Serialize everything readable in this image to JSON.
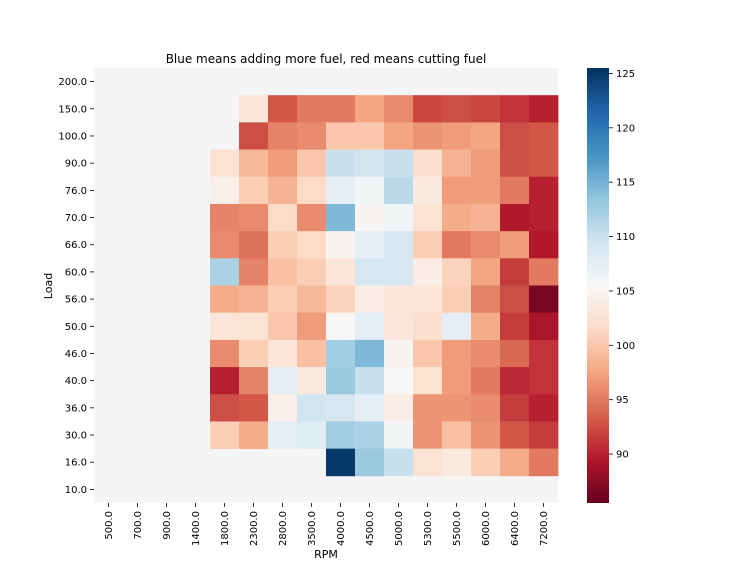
{
  "chart_data": {
    "type": "heatmap",
    "title": "Blue means adding more fuel, red means cutting fuel",
    "xlabel": "RPM",
    "ylabel": "Load",
    "x_categories": [
      "500.0",
      "700.0",
      "900.0",
      "1400.0",
      "1800.0",
      "2300.0",
      "2800.0",
      "3500.0",
      "4000.0",
      "4500.0",
      "5000.0",
      "5300.0",
      "5500.0",
      "6000.0",
      "6400.0",
      "7200.0"
    ],
    "y_categories": [
      "200.0",
      "150.0",
      "100.0",
      "90.0",
      "76.0",
      "70.0",
      "66.0",
      "60.0",
      "56.0",
      "50.0",
      "46.0",
      "40.0",
      "36.0",
      "30.0",
      "16.0",
      "10.0"
    ],
    "values": [
      [
        null,
        null,
        null,
        null,
        null,
        null,
        null,
        null,
        null,
        null,
        null,
        null,
        null,
        null,
        null,
        null
      ],
      [
        null,
        null,
        null,
        null,
        null,
        103,
        93,
        95,
        95,
        97.5,
        96,
        92,
        92.5,
        92,
        91,
        90
      ],
      [
        null,
        null,
        null,
        null,
        null,
        92.5,
        95.5,
        96,
        100,
        100,
        97.5,
        96.5,
        97,
        97.5,
        92.5,
        93
      ],
      [
        null,
        null,
        null,
        null,
        102.5,
        99,
        97,
        100,
        110,
        109.5,
        110,
        102,
        98.5,
        97,
        92.5,
        93
      ],
      [
        null,
        null,
        null,
        null,
        104.5,
        100.5,
        98.5,
        101.5,
        107.5,
        106,
        111,
        103.5,
        97,
        97,
        95,
        90
      ],
      [
        null,
        null,
        null,
        null,
        95.5,
        96,
        101.5,
        96,
        114.5,
        105,
        106,
        102.5,
        98,
        98.5,
        89.5,
        90
      ],
      [
        null,
        null,
        null,
        null,
        96,
        94.5,
        100.5,
        101.5,
        105,
        107.5,
        109,
        100.5,
        95,
        96,
        97,
        89.5
      ],
      [
        null,
        null,
        null,
        null,
        112,
        95.5,
        99.5,
        100.5,
        103,
        109,
        109,
        104,
        101,
        97.5,
        91.5,
        95
      ],
      [
        null,
        null,
        null,
        null,
        98,
        98.5,
        100.5,
        99,
        101,
        104,
        103,
        103,
        100.5,
        95.5,
        92.5,
        86.5
      ],
      [
        null,
        null,
        null,
        null,
        103,
        102.5,
        100,
        97,
        105.5,
        107.5,
        103,
        102,
        107.5,
        98,
        91.5,
        89
      ],
      [
        null,
        null,
        null,
        null,
        96,
        100.5,
        103,
        99.5,
        112.5,
        114.5,
        105,
        100,
        97,
        96,
        94,
        91
      ],
      [
        null,
        null,
        null,
        null,
        90,
        95.5,
        107.5,
        103.5,
        113,
        110,
        105.5,
        102.5,
        97,
        95,
        90.5,
        91
      ],
      [
        null,
        null,
        null,
        null,
        92.5,
        93,
        104.5,
        109.5,
        109,
        107.5,
        104,
        96.5,
        96.5,
        96,
        91.5,
        90
      ],
      [
        null,
        null,
        null,
        null,
        100.5,
        98,
        107.5,
        108,
        112.5,
        112,
        106,
        96.5,
        99.5,
        96.5,
        93,
        91.5
      ],
      [
        null,
        null,
        null,
        null,
        null,
        null,
        null,
        null,
        125,
        113,
        110,
        102.5,
        103.5,
        100.5,
        98,
        95
      ],
      [
        null,
        null,
        null,
        null,
        null,
        null,
        null,
        null,
        null,
        null,
        null,
        null,
        null,
        null,
        null,
        null
      ]
    ],
    "colormap": "RdBu",
    "color_range": [
      85.5,
      125.5
    ],
    "colorbar_ticks": [
      "90",
      "95",
      "100",
      "105",
      "110",
      "115",
      "120",
      "125"
    ],
    "colorbar_tick_values": [
      90,
      95,
      100,
      105,
      110,
      115,
      120,
      125
    ],
    "missing_color": "#f5f5f5"
  }
}
